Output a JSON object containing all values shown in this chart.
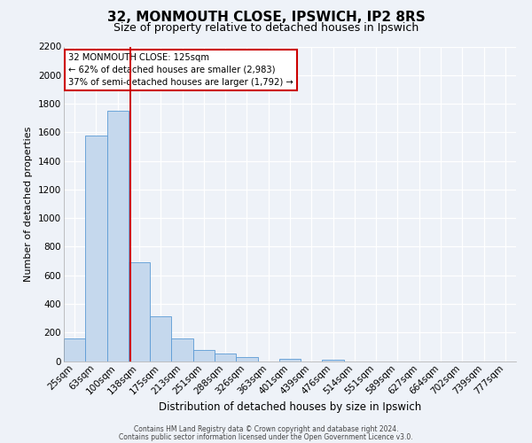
{
  "title1": "32, MONMOUTH CLOSE, IPSWICH, IP2 8RS",
  "title2": "Size of property relative to detached houses in Ipswich",
  "xlabel": "Distribution of detached houses by size in Ipswich",
  "ylabel": "Number of detached properties",
  "bar_labels": [
    "25sqm",
    "63sqm",
    "100sqm",
    "138sqm",
    "175sqm",
    "213sqm",
    "251sqm",
    "288sqm",
    "326sqm",
    "363sqm",
    "401sqm",
    "439sqm",
    "476sqm",
    "514sqm",
    "551sqm",
    "589sqm",
    "627sqm",
    "664sqm",
    "702sqm",
    "739sqm",
    "777sqm"
  ],
  "bar_values": [
    160,
    1580,
    1750,
    690,
    310,
    155,
    80,
    55,
    30,
    0,
    15,
    0,
    10,
    0,
    0,
    0,
    0,
    0,
    0,
    0,
    0
  ],
  "bar_color": "#c5d8ed",
  "bar_edge_color": "#5b9bd5",
  "vline_color": "#cc0000",
  "annotation_title": "32 MONMOUTH CLOSE: 125sqm",
  "annotation_line1": "← 62% of detached houses are smaller (2,983)",
  "annotation_line2": "37% of semi-detached houses are larger (1,792) →",
  "annotation_box_color": "#ffffff",
  "annotation_box_edge": "#cc0000",
  "ylim": [
    0,
    2200
  ],
  "yticks": [
    0,
    200,
    400,
    600,
    800,
    1000,
    1200,
    1400,
    1600,
    1800,
    2000,
    2200
  ],
  "footer1": "Contains HM Land Registry data © Crown copyright and database right 2024.",
  "footer2": "Contains public sector information licensed under the Open Government Licence v3.0.",
  "bg_color": "#eef2f8",
  "grid_color": "#ffffff",
  "title1_fontsize": 11,
  "title2_fontsize": 9,
  "xlabel_fontsize": 8.5,
  "ylabel_fontsize": 8,
  "tick_fontsize": 7.5,
  "footer_fontsize": 5.5
}
